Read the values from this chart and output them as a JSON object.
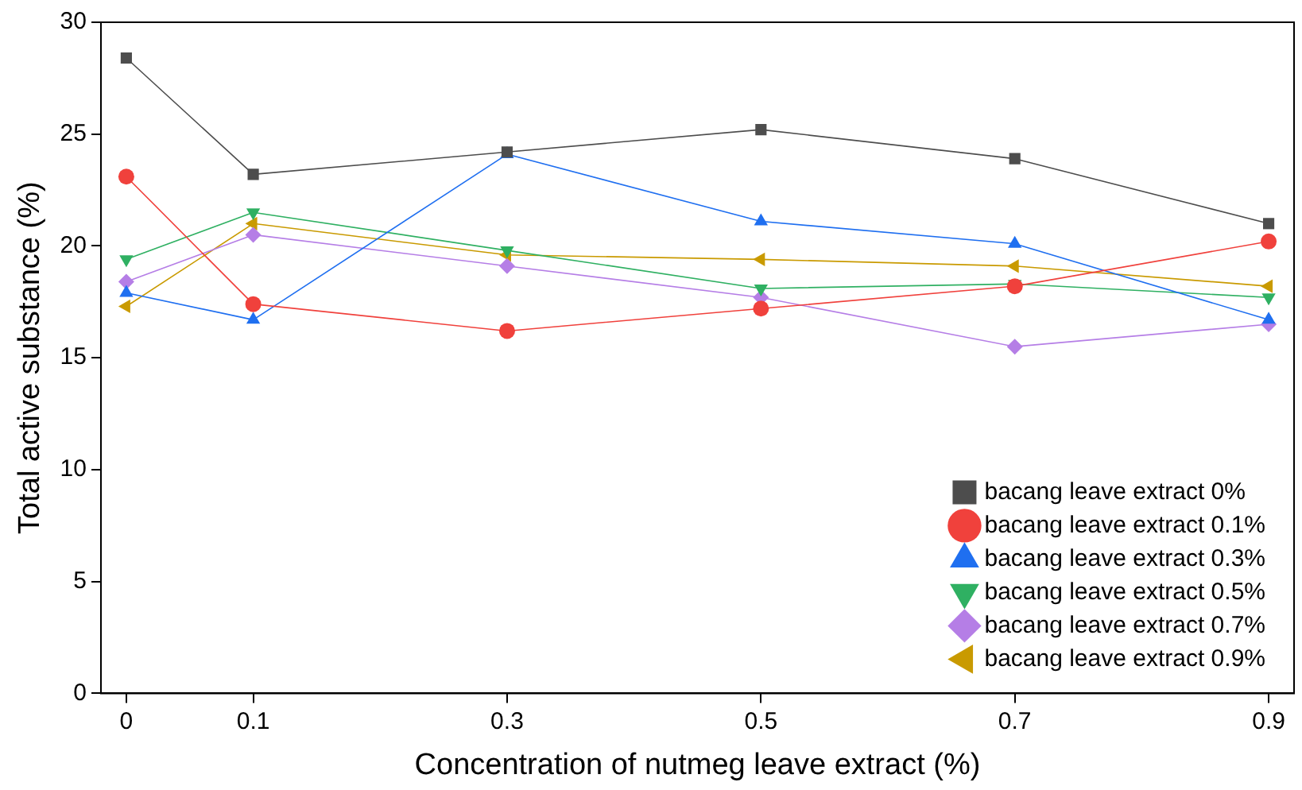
{
  "chart_data": {
    "type": "line",
    "xlabel": "Concentration of nutmeg leave extract (%)",
    "ylabel": "Total active substance (%)",
    "x": [
      0,
      0.1,
      0.3,
      0.5,
      0.7,
      0.9
    ],
    "xlim": [
      -0.02,
      0.92
    ],
    "xticks": [
      0,
      0.1,
      0.3,
      0.5,
      0.7,
      0.9
    ],
    "ylim": [
      0,
      30
    ],
    "yticks": [
      0,
      5,
      10,
      15,
      20,
      25,
      30
    ],
    "grid": false,
    "legend": "bottom right",
    "series": [
      {
        "name": "bacang leave extract 0%",
        "color": "#4d4d4d",
        "marker": "square",
        "values": [
          28.4,
          23.2,
          24.2,
          25.2,
          23.9,
          21.0
        ]
      },
      {
        "name": "bacang leave extract 0.1%",
        "color": "#f0413c",
        "marker": "circle",
        "values": [
          23.1,
          17.4,
          16.2,
          17.2,
          18.2,
          20.2
        ]
      },
      {
        "name": "bacang leave extract 0.3%",
        "color": "#1f6ff0",
        "marker": "triangle",
        "values": [
          17.9,
          16.7,
          24.1,
          21.1,
          20.1,
          16.7
        ]
      },
      {
        "name": "bacang leave extract 0.5%",
        "color": "#2fb062",
        "marker": "triangle-down",
        "values": [
          19.4,
          21.5,
          19.8,
          18.1,
          18.3,
          17.7
        ]
      },
      {
        "name": "bacang leave extract 0.7%",
        "color": "#b57ee6",
        "marker": "diamond",
        "values": [
          18.4,
          20.5,
          19.1,
          17.7,
          15.5,
          16.5
        ]
      },
      {
        "name": "bacang leave extract 0.9%",
        "color": "#c99a00",
        "marker": "triangle-left",
        "values": [
          17.3,
          21.0,
          19.6,
          19.4,
          19.1,
          18.2
        ]
      }
    ]
  }
}
